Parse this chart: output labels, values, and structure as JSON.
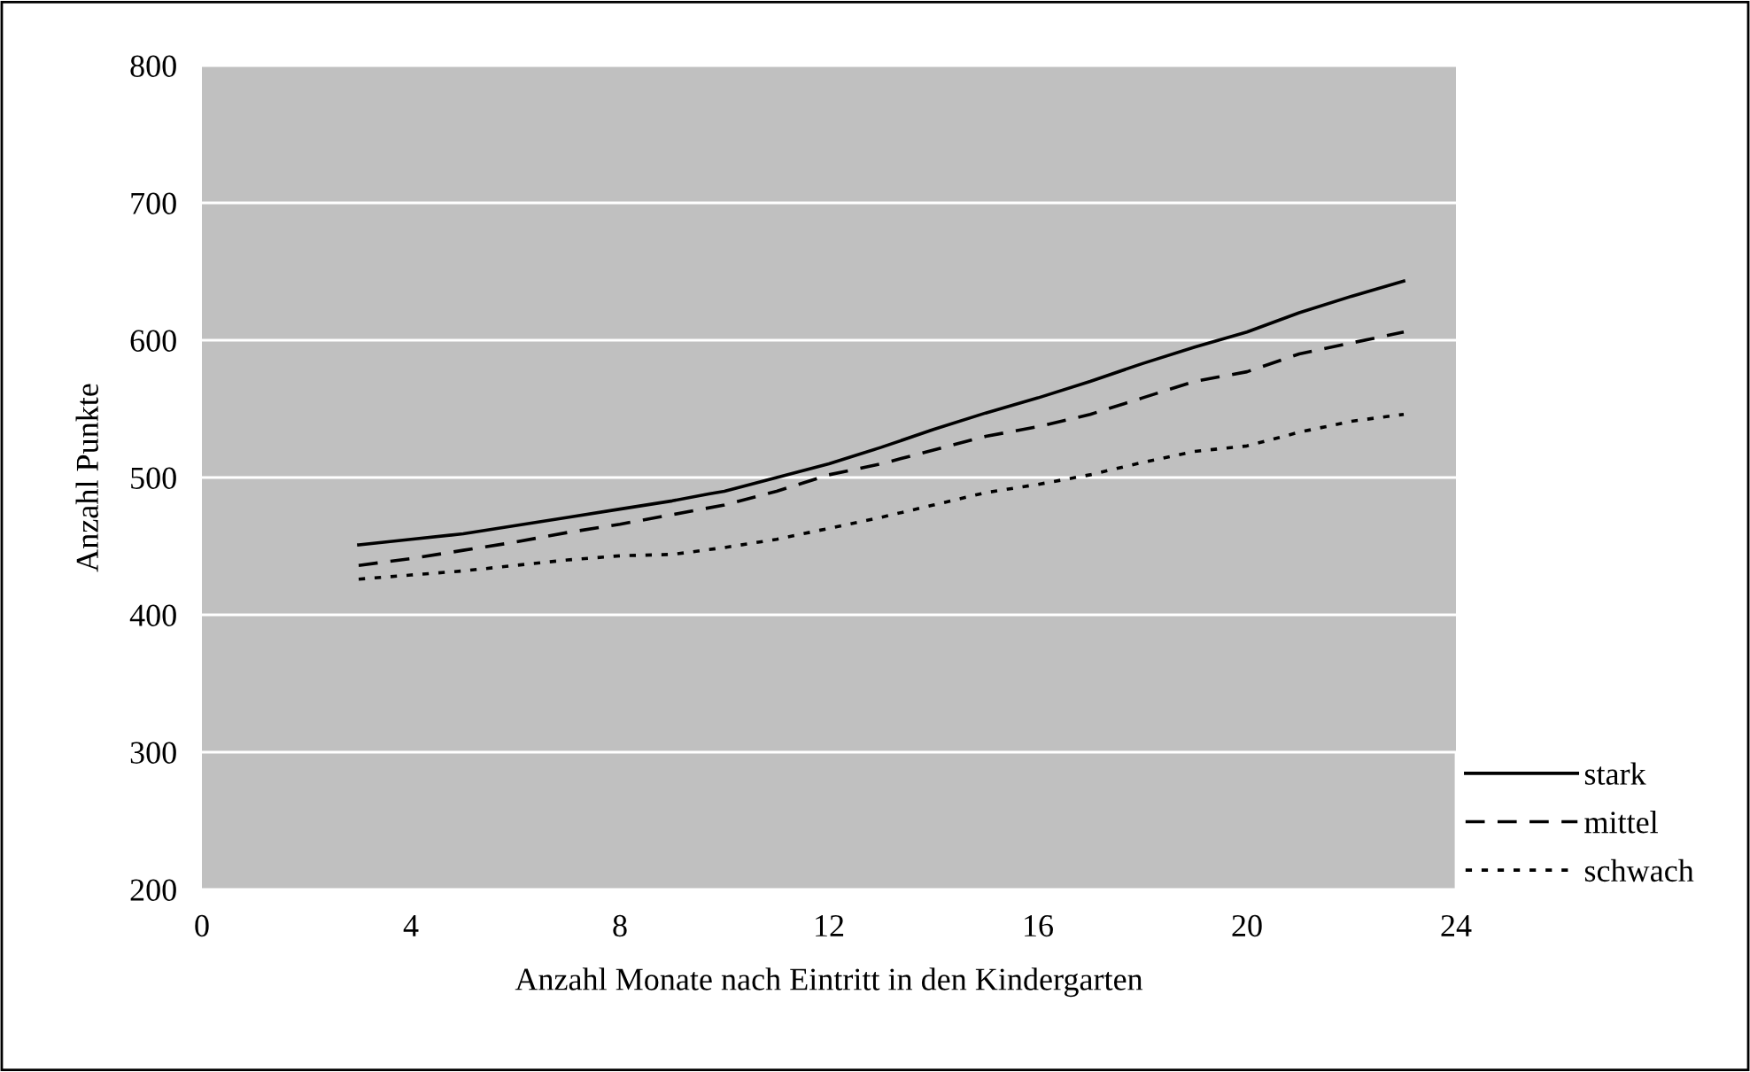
{
  "chart_data": {
    "type": "line",
    "xlabel": "Anzahl Monate nach Eintritt in den Kindergarten",
    "ylabel": "Anzahl Punkte",
    "xlim": [
      0,
      24
    ],
    "xticks": [
      0,
      4,
      8,
      12,
      16,
      20,
      24
    ],
    "ylim": [
      200,
      800
    ],
    "yticks": [
      200,
      300,
      400,
      500,
      600,
      700,
      800
    ],
    "grid": "y",
    "legend": "bottom right",
    "marker": "none",
    "series": [
      {
        "name": "stark",
        "color": "#000000",
        "line_style": "solid",
        "x": [
          3,
          4,
          5,
          6,
          7,
          8,
          9,
          9.7,
          10,
          11,
          12,
          13,
          14,
          15,
          16,
          17,
          18,
          19,
          20,
          21,
          22,
          23
        ],
        "values": [
          451,
          455,
          459,
          465,
          471,
          477,
          483,
          488,
          490,
          500,
          510,
          522,
          535,
          547,
          558,
          570,
          583,
          595,
          606,
          620,
          632,
          643
        ]
      },
      {
        "name": "mittel",
        "color": "#000000",
        "line_style": "dashed",
        "x": [
          3,
          4,
          5,
          6,
          7,
          8,
          9,
          10,
          11,
          12,
          13,
          14,
          15,
          16,
          17,
          18,
          19,
          20,
          21,
          22,
          23
        ],
        "values": [
          436,
          441,
          447,
          453,
          460,
          466,
          473,
          480,
          490,
          502,
          510,
          520,
          530,
          537,
          546,
          558,
          570,
          577,
          590,
          598,
          606
        ]
      },
      {
        "name": "schwach",
        "color": "#000000",
        "line_style": "dotted",
        "x": [
          3,
          4,
          5,
          6,
          7,
          8,
          9,
          10,
          11,
          12,
          13,
          14,
          15,
          16,
          17,
          18,
          19,
          20,
          21,
          22,
          23
        ],
        "values": [
          426,
          429,
          432,
          436,
          440,
          443,
          444,
          449,
          455,
          463,
          471,
          480,
          489,
          495,
          502,
          511,
          519,
          523,
          533,
          541,
          546
        ]
      }
    ]
  }
}
